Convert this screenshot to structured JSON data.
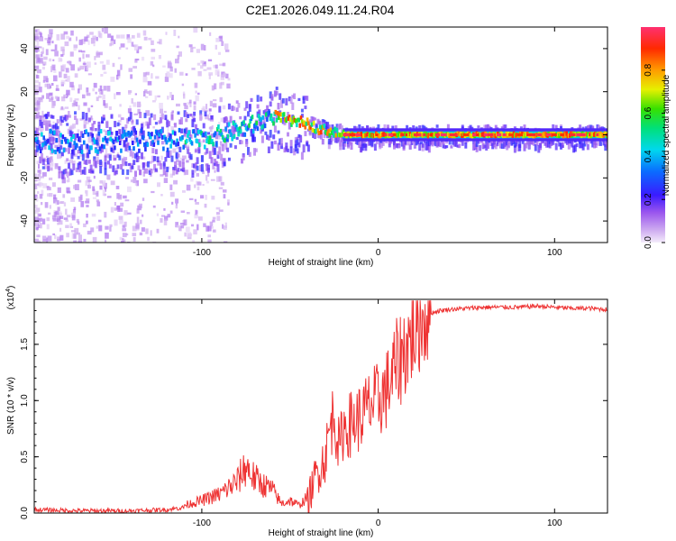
{
  "title": "C2E1.2026.049.11.24.R04",
  "chart_data": [
    {
      "type": "heatmap",
      "name": "spectrogram",
      "xlabel": "Height of straight line (km)",
      "ylabel": "Frequency (Hz)",
      "xlim": [
        -195,
        130
      ],
      "ylim": [
        -50,
        50
      ],
      "xticks": [
        -100,
        0,
        100
      ],
      "yticks": [
        -40,
        -20,
        0,
        20,
        40
      ],
      "colorbar": {
        "label": "Normalized spectral amplitude",
        "range": [
          0,
          1
        ],
        "ticks": [
          0.0,
          0.2,
          0.4,
          0.6,
          0.8
        ]
      },
      "centroid_track": {
        "x": [
          -195,
          -170,
          -140,
          -120,
          -100,
          -85,
          -70,
          -60,
          -55,
          -50,
          -45,
          -40,
          -35,
          -30,
          -25,
          -20,
          -15,
          -10,
          0,
          20,
          50,
          80,
          100,
          130
        ],
        "y": [
          -3,
          -3,
          -3,
          -3,
          -2,
          1,
          5,
          9,
          8,
          6,
          6,
          5,
          3,
          2,
          1,
          0,
          0,
          0,
          0,
          0,
          0,
          0,
          0,
          0
        ]
      }
    },
    {
      "type": "line",
      "name": "snr",
      "xlabel": "Height of straight line (km)",
      "ylabel": "SNR (10 * v/v)",
      "multiplier_label": "(x10",
      "multiplier_exp": "4",
      "close_paren": ")",
      "xlim": [
        -195,
        130
      ],
      "ylim": [
        0,
        1.9
      ],
      "xticks": [
        -100,
        0,
        100
      ],
      "yticks": [
        0.0,
        0.5,
        1.0,
        1.5
      ],
      "series": [
        {
          "name": "SNR",
          "color": "#ee3333",
          "x": [
            -195,
            -170,
            -140,
            -120,
            -110,
            -100,
            -90,
            -80,
            -75,
            -70,
            -65,
            -60,
            -55,
            -50,
            -45,
            -40,
            -35,
            -30,
            -28,
            -25,
            -22,
            -20,
            -15,
            -10,
            -5,
            0,
            5,
            10,
            15,
            20,
            25,
            30,
            35,
            40,
            50,
            60,
            70,
            80,
            90,
            100,
            110,
            120,
            130
          ],
          "y": [
            0.03,
            0.02,
            0.02,
            0.03,
            0.05,
            0.08,
            0.12,
            0.2,
            0.3,
            0.22,
            0.18,
            0.15,
            0.06,
            0.08,
            0.05,
            0.1,
            0.35,
            0.5,
            0.7,
            0.9,
            0.55,
            0.75,
            0.8,
            0.85,
            0.95,
            1.0,
            1.1,
            1.3,
            1.45,
            1.6,
            1.72,
            1.78,
            1.8,
            1.81,
            1.82,
            1.83,
            1.83,
            1.83,
            1.84,
            1.83,
            1.82,
            1.82,
            1.81
          ]
        }
      ]
    }
  ]
}
